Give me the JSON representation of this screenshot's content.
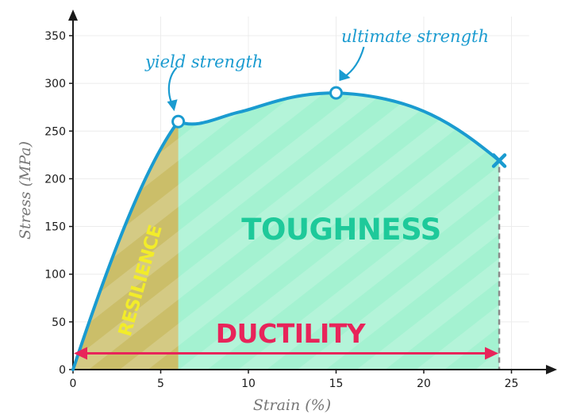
{
  "chart_data": {
    "type": "line",
    "xlabel": "Strain (%)",
    "ylabel": "Stress (MPa)",
    "xlim": [
      0,
      26
    ],
    "ylim": [
      0,
      370
    ],
    "xticks": [
      0,
      5,
      10,
      15,
      20,
      25
    ],
    "yticks": [
      0,
      50,
      100,
      150,
      200,
      250,
      300,
      350
    ],
    "grid": true,
    "series": [
      {
        "x": [
          0,
          6,
          7,
          10,
          15,
          18,
          21,
          24.3
        ],
        "y": [
          0,
          260,
          258,
          273,
          290,
          284,
          263,
          219
        ]
      }
    ],
    "points": {
      "yield": {
        "x": 6,
        "y": 260
      },
      "ultimate": {
        "x": 15,
        "y": 290
      },
      "fracture": {
        "x": 24.3,
        "y": 219
      }
    },
    "annotations": {
      "yield": "yield strength",
      "ultimate": "ultimate strength",
      "toughness": "TOUGHNESS",
      "resilience": "RESILIENCE",
      "ductility": "DUCTILITY"
    }
  },
  "colors": {
    "curve": "#1a9bd0",
    "toughness_fill": "#a4f2d1",
    "toughness_text": "#1ec99a",
    "resilience_fill": "#cbbe69",
    "resilience_text": "#f2ec2a",
    "ductility": "#e8245a",
    "annotation": "#1a9bd0",
    "grid": "#ececec",
    "axis": "#1a1a1a"
  }
}
